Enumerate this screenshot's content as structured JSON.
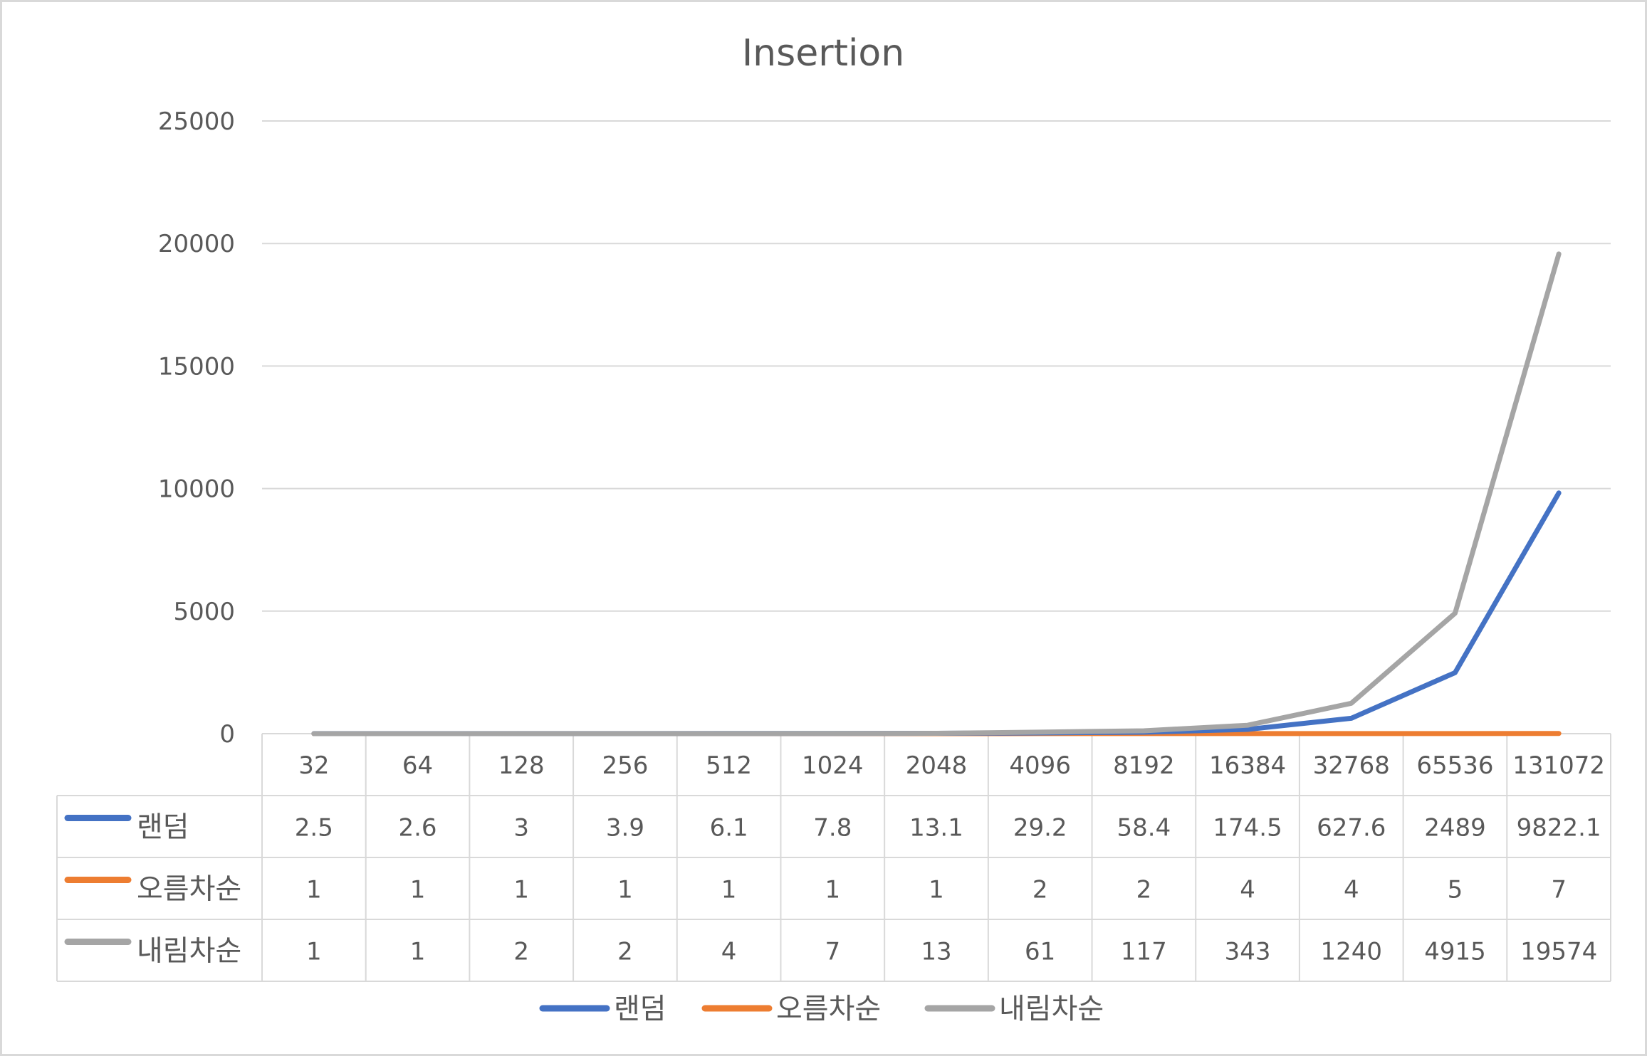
{
  "chart_data": {
    "type": "line",
    "title": "Insertion",
    "xlabel": "",
    "ylabel": "",
    "ylim": [
      0,
      25000
    ],
    "yticks": [
      0,
      5000,
      10000,
      15000,
      20000,
      25000
    ],
    "grid": true,
    "legend": "bottom",
    "data_table": true,
    "categories": [
      "32",
      "64",
      "128",
      "256",
      "512",
      "1024",
      "2048",
      "4096",
      "8192",
      "16384",
      "32768",
      "65536",
      "131072"
    ],
    "series": [
      {
        "name": "랜덤",
        "color": "#4472C4",
        "values": [
          2.5,
          2.6,
          3,
          3.9,
          6.1,
          7.8,
          13.1,
          29.2,
          58.4,
          174.5,
          627.6,
          2489,
          9822.1
        ]
      },
      {
        "name": "오름차순",
        "color": "#ED7D31",
        "values": [
          1,
          1,
          1,
          1,
          1,
          1,
          1,
          2,
          2,
          4,
          4,
          5,
          7
        ]
      },
      {
        "name": "내림차순",
        "color": "#A5A5A5",
        "values": [
          1,
          1,
          2,
          2,
          4,
          7,
          13,
          61,
          117,
          343,
          1240,
          4915,
          19574
        ]
      }
    ]
  }
}
